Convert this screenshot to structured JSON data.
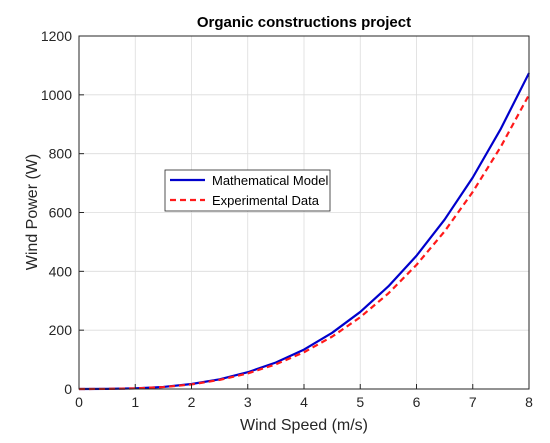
{
  "chart_data": {
    "type": "line",
    "title": "Organic constructions project",
    "xlabel": "Wind Speed (m/s)",
    "ylabel": "Wind Power (W)",
    "xlim": [
      0,
      8
    ],
    "ylim": [
      0,
      1200
    ],
    "xticks": [
      "0",
      "1",
      "2",
      "3",
      "4",
      "5",
      "6",
      "7",
      "8"
    ],
    "yticks": [
      "0",
      "200",
      "400",
      "600",
      "800",
      "1000",
      "1200"
    ],
    "grid": true,
    "legend_position": "center-left",
    "series": [
      {
        "name": "Mathematical Model",
        "color": "#0000cc",
        "style": "solid",
        "x": [
          0,
          0.5,
          1,
          1.5,
          2,
          2.5,
          3,
          3.5,
          4,
          4.5,
          5,
          5.5,
          6,
          6.5,
          7,
          7.5,
          8
        ],
        "y": [
          0,
          0.3,
          2.1,
          7,
          17,
          33,
          57,
          90,
          134,
          191,
          262,
          349,
          453,
          576,
          719,
          885,
          1074
        ]
      },
      {
        "name": "Experimental Data",
        "color": "#ff1a1a",
        "style": "dashed",
        "x": [
          0,
          0.5,
          1,
          1.5,
          2,
          2.5,
          3,
          3.5,
          4,
          4.5,
          5,
          5.5,
          6,
          6.5,
          7,
          7.5,
          8
        ],
        "y": [
          0,
          0.3,
          2,
          6.6,
          15.6,
          31,
          53,
          84,
          125,
          178,
          244,
          325,
          422,
          536,
          670,
          824,
          1000
        ]
      }
    ]
  }
}
